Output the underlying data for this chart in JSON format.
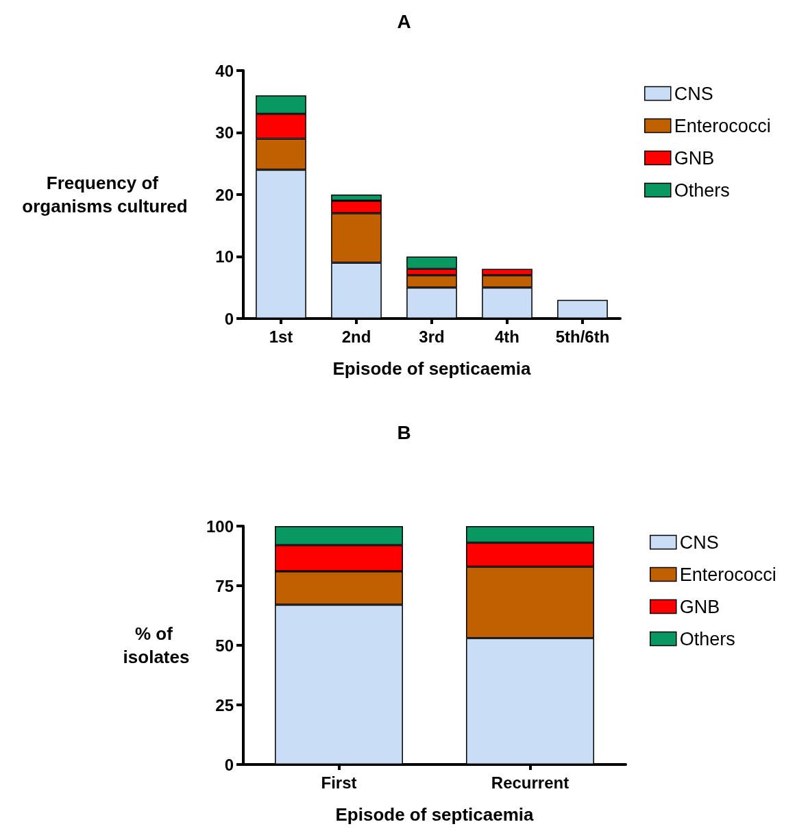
{
  "chart_data": [
    {
      "type": "bar",
      "title": "A",
      "xlabel": "Episode of septicaemia",
      "ylabel": "Frequency of organisms cultured",
      "categories": [
        "1st",
        "2nd",
        "3rd",
        "4th",
        "5th/6th"
      ],
      "stacked": true,
      "series": [
        {
          "name": "CNS",
          "color": "#c9ddf6",
          "values": [
            24,
            9,
            5,
            5,
            3
          ]
        },
        {
          "name": "Enterococci",
          "color": "#c06000",
          "values": [
            5,
            8,
            2,
            2,
            0
          ]
        },
        {
          "name": "GNB",
          "color": "#ff0000",
          "values": [
            4,
            2,
            1,
            1,
            0
          ]
        },
        {
          "name": "Others",
          "color": "#0a9862",
          "values": [
            3,
            1,
            2,
            0,
            0
          ]
        }
      ],
      "ylim": [
        0,
        40
      ],
      "yticks": [
        0,
        10,
        20,
        30,
        40
      ],
      "grid": false,
      "legend": "right"
    },
    {
      "type": "bar",
      "title": "B",
      "xlabel": "Episode of septicaemia",
      "ylabel": "% of isolates",
      "categories": [
        "First",
        "Recurrent"
      ],
      "stacked": true,
      "series": [
        {
          "name": "CNS",
          "color": "#c9ddf6",
          "values": [
            67,
            53
          ]
        },
        {
          "name": "Enterococci",
          "color": "#c06000",
          "values": [
            14,
            30
          ]
        },
        {
          "name": "GNB",
          "color": "#ff0000",
          "values": [
            11,
            10
          ]
        },
        {
          "name": "Others",
          "color": "#0a9862",
          "values": [
            8,
            7
          ]
        }
      ],
      "ylim": [
        0,
        100
      ],
      "yticks": [
        0,
        25,
        50,
        75,
        100
      ],
      "grid": false,
      "legend": "right"
    }
  ]
}
